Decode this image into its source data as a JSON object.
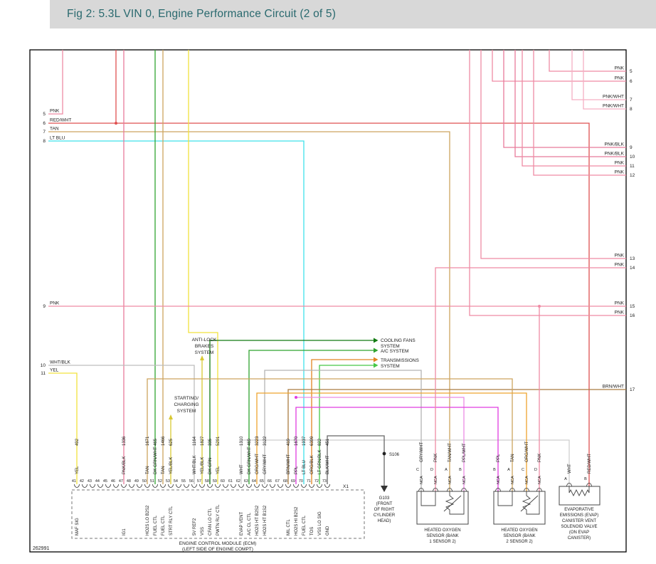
{
  "header": {
    "title": "Fig 2: 5.3L VIN 0, Engine Performance Circuit (2 of 5)"
  },
  "diagram_id": "262991",
  "left_stubs": [
    {
      "num": "5",
      "color": "PNK"
    },
    {
      "num": "6",
      "color": "RED/WHT"
    },
    {
      "num": "7",
      "color": "TAN"
    },
    {
      "num": "8",
      "color": "LT BLU"
    },
    {
      "num": "9",
      "color": "PNK"
    },
    {
      "num": "10",
      "color": "WHT/BLK"
    },
    {
      "num": "11",
      "color": "YEL"
    }
  ],
  "right_stubs": [
    {
      "num": "5",
      "color": "PNK"
    },
    {
      "num": "6",
      "color": "PNK"
    },
    {
      "num": "7",
      "color": "PNK/WHT"
    },
    {
      "num": "8",
      "color": "PNK/WHT"
    },
    {
      "num": "9",
      "color": "PNK/BLK"
    },
    {
      "num": "10",
      "color": "PNK/BLK"
    },
    {
      "num": "11",
      "color": "PNK"
    },
    {
      "num": "12",
      "color": "PNK"
    },
    {
      "num": "13",
      "color": "PNK"
    },
    {
      "num": "14",
      "color": "PNK"
    },
    {
      "num": "15",
      "color": "PNK"
    },
    {
      "num": "16",
      "color": "PNK"
    },
    {
      "num": "17",
      "color": "BRN/WHT"
    }
  ],
  "systems": {
    "abs": {
      "lines": [
        "ANTI-LOCK",
        "BRAKES",
        "SYSTEM"
      ]
    },
    "start": {
      "lines": [
        "STARTING/",
        "CHARGING",
        "SYSTEM"
      ]
    },
    "fans": {
      "lines": [
        "COOLING FANS",
        "SYSTEM"
      ]
    },
    "ac": {
      "lines": [
        "A/C SYSTEM"
      ]
    },
    "trans": {
      "lines": [
        "TRANSMISSIONS",
        "SYSTEM"
      ]
    }
  },
  "ecm": {
    "label_lines": [
      "ENGINE CONTROL MODULE (ECM)",
      "(LEFT SIDE OF ENGINE COMPT)"
    ],
    "connector": "X1",
    "pins": [
      "41",
      "42",
      "43",
      "44",
      "45",
      "46",
      "47",
      "48",
      "49",
      "50",
      "51",
      "52",
      "53",
      "54",
      "55",
      "56",
      "57",
      "58",
      "59",
      "60",
      "61",
      "62",
      "63",
      "64",
      "65",
      "66",
      "67",
      "68",
      "69",
      "70",
      "71",
      "72",
      "73"
    ],
    "circuits": [
      {
        "pin": "41",
        "signal": "MAF SIG",
        "wire": "492",
        "color": "YEL"
      },
      {
        "pin": "47",
        "signal": "IG1",
        "wire": "1336",
        "color": "PNK/BLK"
      },
      {
        "pin": "50",
        "signal": "HO2S LO B2S2",
        "wire": "1671",
        "color": "TAN"
      },
      {
        "pin": "51",
        "signal": "FUEL CTL",
        "wire": "465",
        "color": "DK GRN/WHT"
      },
      {
        "pin": "52",
        "signal": "FUEL CTL",
        "wire": "1466",
        "color": "TAN"
      },
      {
        "pin": "53",
        "signal": "STRT RLY CTL",
        "wire": "625",
        "color": "YEL/BLK"
      },
      {
        "pin": "56",
        "signal": "5V REF2",
        "wire": "1164",
        "color": "WHT/BLK"
      },
      {
        "pin": "57",
        "signal": "VSS",
        "wire": "1827",
        "color": "YEL/BLK"
      },
      {
        "pin": "58",
        "signal": "CFAN LO CTL",
        "wire": "335",
        "color": "DK GRN"
      },
      {
        "pin": "59",
        "signal": "PWTN RLY CTL",
        "wire": "5291",
        "color": "YEL"
      },
      {
        "pin": "62",
        "signal": "EVAP VENT",
        "wire": "1310",
        "color": "WHT"
      },
      {
        "pin": "63",
        "signal": "A/C CL CTL",
        "wire": "469",
        "color": "DK GRN/WHT"
      },
      {
        "pin": "64",
        "signal": "HO2S HT B2S2",
        "wire": "3223",
        "color": "ORG/WHT"
      },
      {
        "pin": "65",
        "signal": "HO2S HT B1S2",
        "wire": "3122",
        "color": "GRY/WHT"
      },
      {
        "pin": "68",
        "signal": "MIL CTL",
        "wire": "419",
        "color": "BRN/WHT"
      },
      {
        "pin": "69",
        "signal": "HO2S HI B2S2",
        "wire": "1670",
        "color": "PPL"
      },
      {
        "pin": "70",
        "signal": "FUEL CTL",
        "wire": "1937",
        "color": "LT BLU"
      },
      {
        "pin": "71",
        "signal": "TOS",
        "wire": "6399",
        "color": "ORG/BLK"
      },
      {
        "pin": "72",
        "signal": "VSS LO SIG",
        "wire": "822",
        "color": "LT GRN/BLK"
      },
      {
        "pin": "73",
        "signal": "GND",
        "wire": "451",
        "color": "BLK/WHT"
      }
    ]
  },
  "ground": {
    "splice": "S106",
    "wire_color": "BLK/WHT",
    "label_lines": [
      "G103",
      "(FRONT",
      "OF RIGHT",
      "CYLINDER",
      "HEAD)"
    ]
  },
  "ho2s_bank1": {
    "label_lines": [
      "HEATED OXYGEN",
      "SENSOR (BANK",
      "1 SENSOR 2)"
    ],
    "pins": [
      {
        "letter": "C",
        "nca": "NCA",
        "color": "GRY/WHT"
      },
      {
        "letter": "D",
        "nca": "NCA",
        "color": "PNK"
      },
      {
        "letter": "A",
        "nca": "NCA",
        "color": "TAN/WHT"
      },
      {
        "letter": "B",
        "nca": "NCA",
        "color": "PPL/WHT"
      }
    ]
  },
  "ho2s_bank2": {
    "label_lines": [
      "HEATED OXYGEN",
      "SENSOR (BANK",
      "2 SENSOR 2)"
    ],
    "pins": [
      {
        "letter": "B",
        "nca": "NCA",
        "color": "PPL"
      },
      {
        "letter": "A",
        "nca": "NCA",
        "color": "TAN"
      },
      {
        "letter": "C",
        "nca": "NCA",
        "color": "ORG/WHT"
      },
      {
        "letter": "D",
        "nca": "NCA",
        "color": "PNK"
      }
    ]
  },
  "evap": {
    "label_lines": [
      "EVAPORATIVE",
      "EMISSIONS (EVAP)",
      "CANISTER VENT",
      "SOLENOID VALVE",
      "(ON EVAP",
      "CANISTER)"
    ],
    "pins": [
      {
        "letter": "A",
        "color": "WHT"
      },
      {
        "letter": "B",
        "color": "RED/WHT"
      }
    ]
  },
  "wire_colors": {
    "PNK": "#ef8ba4",
    "PNK/BLK": "#e87b9b",
    "PNK/WHT": "#f5afc4",
    "RED/WHT": "#df5050",
    "TAN": "#cda45f",
    "TAN/WHT": "#d8b472",
    "LT BLU": "#3fe2ea",
    "YEL": "#f2e23d",
    "YEL/BLK": "#d8c832",
    "DK GRN": "#117a11",
    "DK GRN/WHT": "#2fa32f",
    "LT GRN/BLK": "#46c846",
    "WHT": "#cfcfcf",
    "WHT/BLK": "#bdbdbd",
    "GRY/WHT": "#b3b3b3",
    "ORG/WHT": "#eda32e",
    "ORG/BLK": "#e28420",
    "BRN/WHT": "#aa7c41",
    "PPL": "#e03ce0",
    "PPL/WHT": "#ec8be4",
    "BLK/WHT": "#666666"
  }
}
